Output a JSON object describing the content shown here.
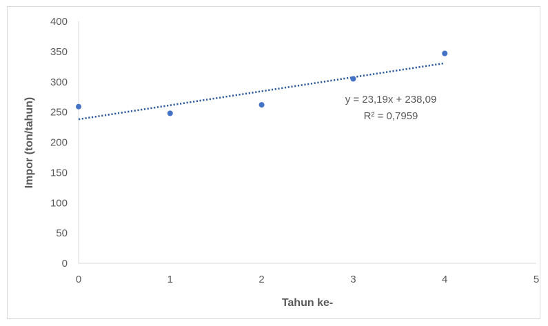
{
  "chart_data": {
    "type": "scatter",
    "xlabel": "Tahun ke-",
    "ylabel": "Impor (ton/tahun)",
    "xlim": [
      0,
      5
    ],
    "ylim": [
      0,
      400
    ],
    "x_ticks": [
      0,
      1,
      2,
      3,
      4,
      5
    ],
    "y_ticks": [
      0,
      50,
      100,
      150,
      200,
      250,
      300,
      350,
      400
    ],
    "grid": false,
    "legend": "none",
    "series": [
      {
        "x": [
          0,
          1,
          2,
          3,
          4
        ],
        "y": [
          259,
          248,
          262,
          305,
          347
        ],
        "color": "#4472c4"
      }
    ],
    "trendline": {
      "type": "linear",
      "slope": 23.19,
      "intercept": 238.09,
      "x_range": [
        0,
        4
      ],
      "style": "dotted",
      "color": "#2e5c9a"
    },
    "annotations": {
      "equation": "y = 23,19x + 238,09",
      "r_squared": "R² = 0,7959"
    },
    "colors": {
      "axis": "#d9d9d9",
      "text": "#595959",
      "point": "#4472c4"
    }
  }
}
